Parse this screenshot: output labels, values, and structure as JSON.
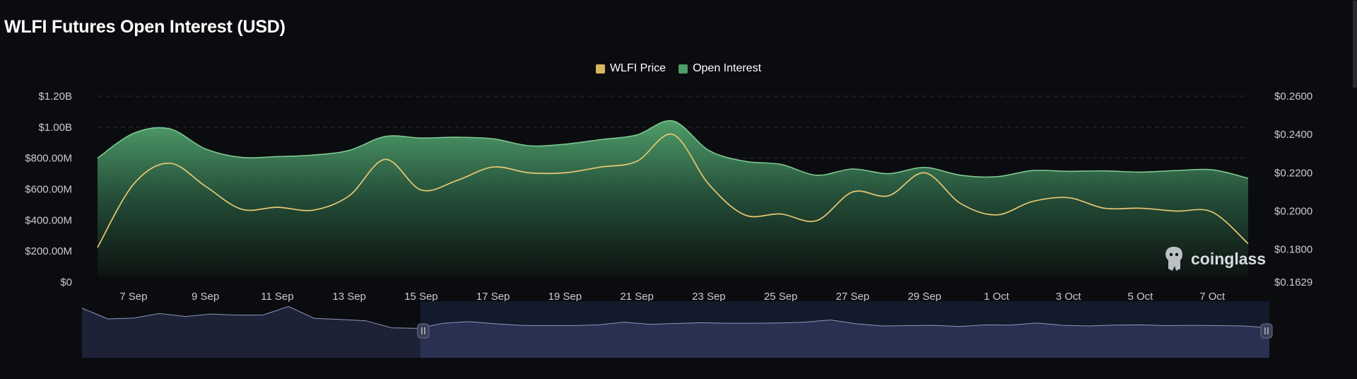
{
  "header": {
    "title": "WLFI Futures Open Interest (USD)"
  },
  "colors": {
    "price_line": "#e8c872",
    "oi_fill": "#4e9a68",
    "oi_line": "#7cc98f",
    "grid": "#2b2d33",
    "navigator_fill": "#2a3052",
    "navigator_line": "#8e96b8"
  },
  "watermark": {
    "text": "coinglass",
    "icon": "coinglass-logo-icon"
  },
  "chart_data": {
    "type": "area",
    "x": [
      "6 Sep",
      "7 Sep",
      "8 Sep",
      "9 Sep",
      "10 Sep",
      "11 Sep",
      "12 Sep",
      "13 Sep",
      "14 Sep",
      "15 Sep",
      "16 Sep",
      "17 Sep",
      "18 Sep",
      "19 Sep",
      "20 Sep",
      "21 Sep",
      "22 Sep",
      "23 Sep",
      "24 Sep",
      "25 Sep",
      "26 Sep",
      "27 Sep",
      "28 Sep",
      "29 Sep",
      "30 Sep",
      "1 Oct",
      "2 Oct",
      "3 Oct",
      "4 Oct",
      "5 Oct",
      "6 Oct",
      "7 Oct",
      "8 Oct"
    ],
    "x_tick_labels": [
      "7 Sep",
      "9 Sep",
      "11 Sep",
      "13 Sep",
      "15 Sep",
      "17 Sep",
      "19 Sep",
      "21 Sep",
      "23 Sep",
      "25 Sep",
      "27 Sep",
      "29 Sep",
      "1 Oct",
      "3 Oct",
      "5 Oct",
      "7 Oct"
    ],
    "series": [
      {
        "name": "Open Interest",
        "axis": "left",
        "values": [
          800000000,
          960000000,
          990000000,
          860000000,
          805000000,
          810000000,
          820000000,
          850000000,
          940000000,
          930000000,
          935000000,
          925000000,
          880000000,
          890000000,
          920000000,
          950000000,
          1040000000,
          850000000,
          780000000,
          760000000,
          690000000,
          730000000,
          700000000,
          740000000,
          690000000,
          680000000,
          720000000,
          715000000,
          718000000,
          710000000,
          720000000,
          725000000,
          670000000
        ]
      },
      {
        "name": "WLFI Price",
        "axis": "right",
        "values": [
          0.181,
          0.214,
          0.225,
          0.213,
          0.201,
          0.202,
          0.2005,
          0.208,
          0.227,
          0.211,
          0.216,
          0.223,
          0.22,
          0.22,
          0.223,
          0.226,
          0.24,
          0.214,
          0.198,
          0.1985,
          0.195,
          0.21,
          0.208,
          0.22,
          0.204,
          0.198,
          0.205,
          0.207,
          0.2015,
          0.2015,
          0.2,
          0.1995,
          0.183
        ]
      }
    ],
    "navigator": {
      "values": [
        920000000,
        720000000,
        735000000,
        820000000,
        765000000,
        810000000,
        790000000,
        790000000,
        950000000,
        730000000,
        710000000,
        685000000,
        555000000,
        545000000,
        640000000,
        670000000,
        630000000,
        600000000,
        595000000,
        595000000,
        610000000,
        660000000,
        620000000,
        635000000,
        650000000,
        640000000,
        640000000,
        645000000,
        660000000,
        700000000,
        630000000,
        590000000,
        595000000,
        600000000,
        580000000,
        610000000,
        605000000,
        645000000,
        600000000,
        590000000,
        605000000,
        610000000,
        595000000,
        600000000,
        595000000,
        590000000,
        555000000
      ],
      "selected_start_fraction": 0.285,
      "selected_end_fraction": 1.0
    },
    "title": "WLFI Futures Open Interest (USD)",
    "y_left": {
      "ticks": [
        0,
        200000000,
        400000000,
        600000000,
        800000000,
        1000000000,
        1200000000
      ],
      "tick_labels": [
        "$0",
        "$200.00M",
        "$400.00M",
        "$600.00M",
        "$800.00M",
        "$1.00B",
        "$1.20B"
      ],
      "ylim": [
        0,
        1200000000
      ]
    },
    "y_right": {
      "ticks": [
        0.1629,
        0.18,
        0.2,
        0.22,
        0.24,
        0.26
      ],
      "tick_labels": [
        "$0.1629",
        "$0.1800",
        "$0.2000",
        "$0.2200",
        "$0.2400",
        "$0.2600"
      ],
      "ylim": [
        0.1629,
        0.26
      ]
    },
    "legend": {
      "placement": "top-center",
      "entries": [
        "WLFI Price",
        "Open Interest"
      ]
    },
    "grid": true
  }
}
